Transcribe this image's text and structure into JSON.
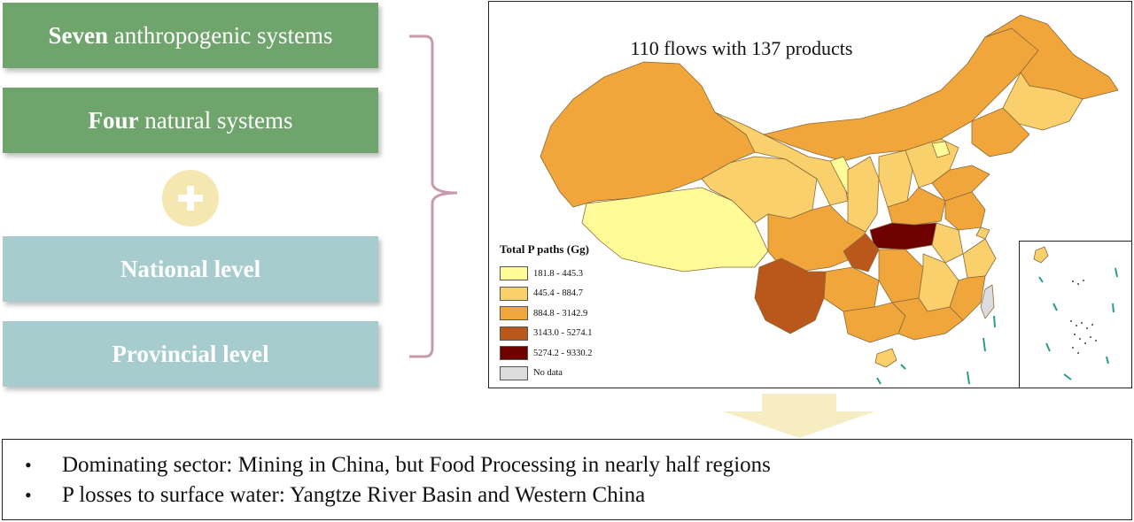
{
  "left_boxes": {
    "box1": {
      "bold": "Seven",
      "rest": " anthropogenic systems"
    },
    "box2": {
      "bold": "Four",
      "rest": " natural systems"
    },
    "box3": {
      "label": "National level"
    },
    "box4": {
      "label": "Provincial level"
    }
  },
  "plus_symbol": "+",
  "map": {
    "title": "110 flows with 137 products",
    "legend": {
      "title": "Total P paths (Gg)",
      "items": [
        {
          "label": "181.8 - 445.3",
          "color": "#fffb99"
        },
        {
          "label": "445.4 - 884.7",
          "color": "#f9d06b"
        },
        {
          "label": "884.8 - 3142.9",
          "color": "#f0a63a"
        },
        {
          "label": "3143.0 - 5274.1",
          "color": "#b9581a"
        },
        {
          "label": "5274.2 - 9330.2",
          "color": "#6e0000"
        },
        {
          "label": "No data",
          "color": "#dcdcdc"
        }
      ]
    }
  },
  "colors": {
    "green_box": "#6fa56c",
    "teal_box": "#a6cccd",
    "brace": "#c99aae",
    "plus_circle": "#f5e7b0",
    "arrow": "#f6edc3"
  },
  "results": {
    "bullets": [
      "Dominating sector: Mining in China, but Food Processing in nearly half regions",
      "P losses to surface water: Yangtze River Basin and Western China"
    ]
  }
}
